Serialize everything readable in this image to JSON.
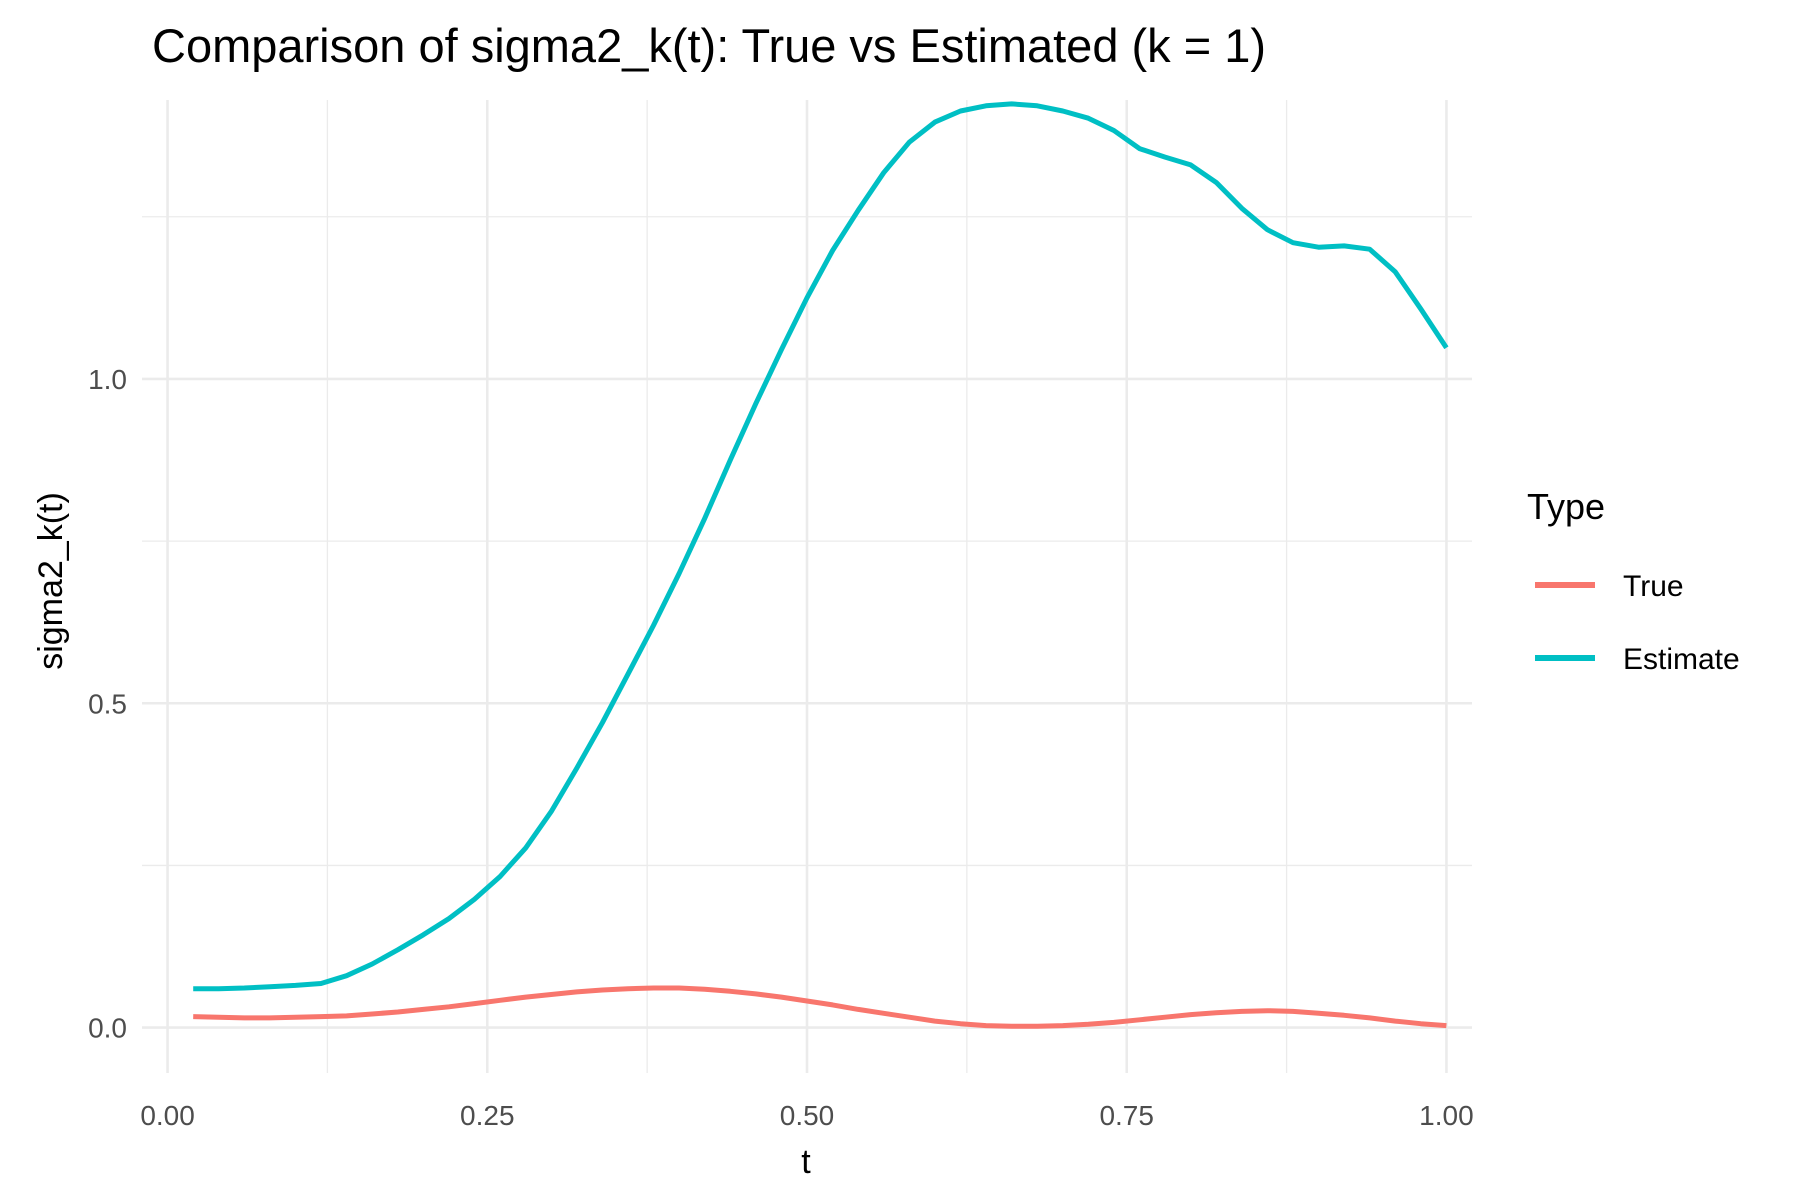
{
  "chart_data": {
    "type": "line",
    "title": "Comparison of sigma2_k(t): True vs Estimated (k = 1)",
    "xlabel": "t",
    "ylabel": "sigma2_k(t)",
    "xlim": [
      -0.02,
      1.02
    ],
    "ylim": [
      -0.07,
      1.43
    ],
    "x_ticks": [
      0.0,
      0.25,
      0.5,
      0.75,
      1.0
    ],
    "x_tick_labels": [
      "0.00",
      "0.25",
      "0.50",
      "0.75",
      "1.00"
    ],
    "y_ticks": [
      0.0,
      0.5,
      1.0
    ],
    "y_tick_labels": [
      "0.0",
      "0.5",
      "1.0"
    ],
    "grid": true,
    "legend": {
      "title": "Type",
      "position": "right"
    },
    "x": [
      0.02,
      0.04,
      0.06,
      0.08,
      0.1,
      0.12,
      0.14,
      0.16,
      0.18,
      0.2,
      0.22,
      0.24,
      0.26,
      0.28,
      0.3,
      0.32,
      0.34,
      0.36,
      0.38,
      0.4,
      0.42,
      0.44,
      0.46,
      0.48,
      0.5,
      0.52,
      0.54,
      0.56,
      0.58,
      0.6,
      0.62,
      0.64,
      0.66,
      0.68,
      0.7,
      0.72,
      0.74,
      0.76,
      0.78,
      0.8,
      0.82,
      0.84,
      0.86,
      0.88,
      0.9,
      0.92,
      0.94,
      0.96,
      0.98,
      1.0
    ],
    "series": [
      {
        "name": "True",
        "color": "#F8766D",
        "values": [
          0.017,
          0.016,
          0.015,
          0.015,
          0.016,
          0.017,
          0.018,
          0.021,
          0.024,
          0.028,
          0.032,
          0.037,
          0.042,
          0.047,
          0.051,
          0.055,
          0.058,
          0.06,
          0.061,
          0.061,
          0.059,
          0.056,
          0.052,
          0.047,
          0.041,
          0.035,
          0.028,
          0.022,
          0.016,
          0.01,
          0.006,
          0.003,
          0.002,
          0.002,
          0.003,
          0.005,
          0.008,
          0.012,
          0.016,
          0.02,
          0.023,
          0.025,
          0.026,
          0.025,
          0.022,
          0.019,
          0.015,
          0.01,
          0.006,
          0.003
        ]
      },
      {
        "name": "Estimate",
        "color": "#00BFC4",
        "values": [
          0.06,
          0.06,
          0.061,
          0.063,
          0.065,
          0.068,
          0.08,
          0.098,
          0.12,
          0.143,
          0.168,
          0.198,
          0.233,
          0.277,
          0.333,
          0.4,
          0.47,
          0.545,
          0.62,
          0.7,
          0.785,
          0.875,
          0.962,
          1.045,
          1.125,
          1.198,
          1.26,
          1.318,
          1.365,
          1.396,
          1.413,
          1.421,
          1.424,
          1.421,
          1.413,
          1.402,
          1.383,
          1.355,
          1.342,
          1.33,
          1.303,
          1.263,
          1.23,
          1.21,
          1.203,
          1.205,
          1.2,
          1.165,
          1.108,
          1.048
        ]
      }
    ]
  }
}
